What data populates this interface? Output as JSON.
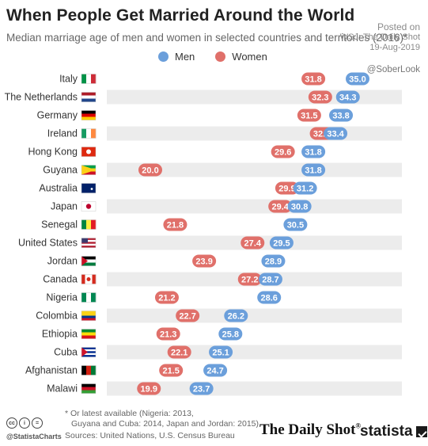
{
  "header": {
    "title": "When People Get Married Around the World",
    "subtitle": "Median marriage age of men and women in selected countries and territories (2016)*"
  },
  "watermark": {
    "posted_on": "Posted on",
    "source": "WSJ: The Daily Shot",
    "date": "19-Aug-2019"
  },
  "handle": "@SoberLook",
  "colors": {
    "men": "#6b9fdb",
    "women": "#e0706a",
    "stripe": "#ececec"
  },
  "chart_data": {
    "type": "dot",
    "categories": [
      "Italy",
      "The Netherlands",
      "Germany",
      "Ireland",
      "Hong Kong",
      "Guyana",
      "Australia",
      "Japan",
      "Senegal",
      "United States",
      "Jordan",
      "Canada",
      "Nigeria",
      "Colombia",
      "Ethiopia",
      "Cuba",
      "Afghanistan",
      "Malawi"
    ],
    "series": [
      {
        "name": "Men",
        "values": [
          35.0,
          34.3,
          33.8,
          33.4,
          31.8,
          31.8,
          31.2,
          30.8,
          30.5,
          29.5,
          28.9,
          28.7,
          28.6,
          26.2,
          25.8,
          25.1,
          24.7,
          23.7
        ]
      },
      {
        "name": "Women",
        "values": [
          31.8,
          32.3,
          31.5,
          32.4,
          29.6,
          20.0,
          29.9,
          29.4,
          21.8,
          27.4,
          23.9,
          27.2,
          21.2,
          22.7,
          21.3,
          22.1,
          21.5,
          19.9
        ]
      }
    ],
    "labels": {
      "men": [
        "35.0",
        "34.3",
        "33.8",
        "33.4",
        "31.8",
        "31.8",
        "31.2",
        "30.8",
        "30.5",
        "29.5",
        "28.9",
        "28.7",
        "28.6",
        "26.2",
        "25.8",
        "25.1",
        "24.7",
        "23.7"
      ],
      "women": [
        "31.8",
        "32.3",
        "31.5",
        "32.4",
        "29.6",
        "20.0",
        "29.9",
        "29.4",
        "21.8",
        "27.4",
        "23.9",
        "27.2",
        "21.2",
        "22.7",
        "21.3",
        "22.1",
        "21.5",
        "19.9"
      ]
    },
    "xlim": [
      18,
      36
    ],
    "legend": "top-center",
    "grid": false
  },
  "flags": [
    {
      "icon": "italy-flag-icon",
      "stripes": "v",
      "colors": [
        "#009246",
        "#ffffff",
        "#ce2b37"
      ]
    },
    {
      "icon": "netherlands-flag-icon",
      "stripes": "h",
      "colors": [
        "#ae1c28",
        "#ffffff",
        "#21468b"
      ]
    },
    {
      "icon": "germany-flag-icon",
      "stripes": "h",
      "colors": [
        "#000000",
        "#dd0000",
        "#ffce00"
      ]
    },
    {
      "icon": "ireland-flag-icon",
      "stripes": "v",
      "colors": [
        "#169b62",
        "#ffffff",
        "#ff883e"
      ]
    },
    {
      "icon": "hong-kong-flag-icon",
      "stripes": "h",
      "colors": [
        "#de2910"
      ]
    },
    {
      "icon": "guyana-flag-icon",
      "stripes": "h",
      "colors": [
        "#009e49",
        "#fcd116",
        "#ce1126"
      ]
    },
    {
      "icon": "australia-flag-icon",
      "stripes": "h",
      "colors": [
        "#012169"
      ]
    },
    {
      "icon": "japan-flag-icon",
      "stripes": "h",
      "colors": [
        "#ffffff"
      ]
    },
    {
      "icon": "senegal-flag-icon",
      "stripes": "v",
      "colors": [
        "#00853f",
        "#fdef42",
        "#e31b23"
      ]
    },
    {
      "icon": "united-states-flag-icon",
      "stripes": "h",
      "colors": [
        "#b22234",
        "#ffffff",
        "#b22234",
        "#ffffff",
        "#b22234"
      ]
    },
    {
      "icon": "jordan-flag-icon",
      "stripes": "h",
      "colors": [
        "#000000",
        "#ffffff",
        "#007a3d"
      ]
    },
    {
      "icon": "canada-flag-icon",
      "stripes": "v",
      "colors": [
        "#d52b1e",
        "#ffffff",
        "#ffffff",
        "#d52b1e"
      ]
    },
    {
      "icon": "nigeria-flag-icon",
      "stripes": "v",
      "colors": [
        "#008751",
        "#ffffff",
        "#008751"
      ]
    },
    {
      "icon": "colombia-flag-icon",
      "stripes": "h",
      "colors": [
        "#fcd116",
        "#fcd116",
        "#003893",
        "#ce1126"
      ]
    },
    {
      "icon": "ethiopia-flag-icon",
      "stripes": "h",
      "colors": [
        "#078930",
        "#fcdd09",
        "#da121a"
      ]
    },
    {
      "icon": "cuba-flag-icon",
      "stripes": "h",
      "colors": [
        "#002a8f",
        "#ffffff",
        "#002a8f",
        "#ffffff",
        "#002a8f"
      ]
    },
    {
      "icon": "afghanistan-flag-icon",
      "stripes": "v",
      "colors": [
        "#000000",
        "#d32011",
        "#007a36"
      ]
    },
    {
      "icon": "malawi-flag-icon",
      "stripes": "h",
      "colors": [
        "#000000",
        "#ce1126",
        "#339e35"
      ]
    }
  ],
  "footer": {
    "note_line1": "* Or latest available (Nigeria: 2013,",
    "note_line2": "Guyana and Cuba: 2014, Japan and Jordan: 2015)",
    "sources": "Sources: United Nations, U.S. Census Bureau",
    "cc_handle": "@StatistaCharts",
    "dailyshot": "The Daily Shot",
    "dailyshot_reg": "®",
    "statista": "statista"
  }
}
